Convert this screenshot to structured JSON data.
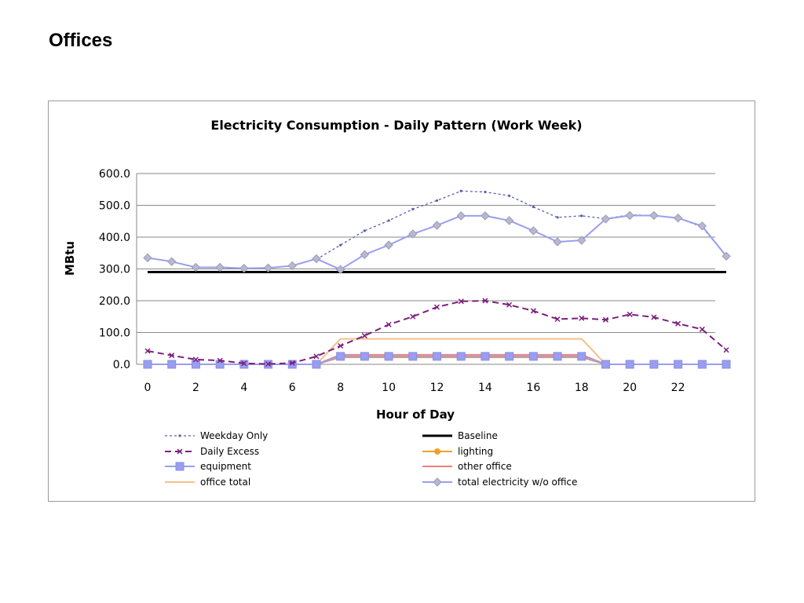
{
  "page": {
    "title": "Offices"
  },
  "chart_data": {
    "type": "line",
    "title": "Electricity Consumption - Daily Pattern (Work Week)",
    "xlabel": "Hour of Day",
    "ylabel": "MBtu",
    "x": [
      0,
      1,
      2,
      3,
      4,
      5,
      6,
      7,
      8,
      9,
      10,
      11,
      12,
      13,
      14,
      15,
      16,
      17,
      18,
      19,
      20,
      21,
      22,
      23,
      24
    ],
    "xlim": [
      0,
      24
    ],
    "x_ticks": [
      0,
      2,
      4,
      6,
      8,
      10,
      12,
      14,
      16,
      18,
      20,
      22
    ],
    "ylim": [
      0,
      600
    ],
    "y_ticks": [
      0,
      100,
      200,
      300,
      400,
      500,
      600
    ],
    "y_tick_labels": [
      "0.0",
      "100.0",
      "200.0",
      "300.0",
      "400.0",
      "500.0",
      "600.0"
    ],
    "grid": "horizontal",
    "legend_position": "bottom",
    "series": [
      {
        "name": "Weekday Only",
        "color": "#5a5fb0",
        "style": "dotted",
        "marker": "dash-dot",
        "values": [
          null,
          null,
          null,
          null,
          null,
          null,
          null,
          330,
          375,
          420,
          452,
          488,
          515,
          545,
          542,
          530,
          495,
          462,
          467,
          458,
          470,
          468,
          460,
          432,
          340
        ]
      },
      {
        "name": "Baseline",
        "color": "#000000",
        "style": "solid-thick",
        "marker": "none",
        "values": [
          290,
          290,
          290,
          290,
          290,
          290,
          290,
          290,
          290,
          290,
          290,
          290,
          290,
          290,
          290,
          290,
          290,
          290,
          290,
          290,
          290,
          290,
          290,
          290,
          290
        ]
      },
      {
        "name": "Daily Excess",
        "color": "#7b1f7d",
        "style": "dashed",
        "marker": "x",
        "values": [
          42,
          28,
          15,
          12,
          3,
          1,
          4,
          25,
          58,
          90,
          125,
          150,
          180,
          198,
          200,
          187,
          168,
          142,
          145,
          140,
          157,
          148,
          128,
          110,
          45
        ]
      },
      {
        "name": "lighting",
        "color": "#f0a030",
        "style": "solid",
        "marker": "circle",
        "values": [
          0,
          0,
          0,
          0,
          0,
          0,
          0,
          0,
          22,
          22,
          22,
          22,
          22,
          22,
          22,
          22,
          22,
          22,
          22,
          0,
          0,
          0,
          0,
          0,
          0
        ]
      },
      {
        "name": "equipment",
        "color": "#9a9ef0",
        "style": "solid",
        "marker": "square",
        "values": [
          0,
          0,
          0,
          0,
          0,
          0,
          0,
          0,
          25,
          25,
          25,
          25,
          25,
          25,
          25,
          25,
          25,
          25,
          25,
          0,
          0,
          0,
          0,
          0,
          0
        ]
      },
      {
        "name": "other office",
        "color": "#f08080",
        "style": "solid",
        "marker": "dash",
        "values": [
          0,
          0,
          0,
          0,
          0,
          0,
          0,
          0,
          30,
          30,
          30,
          30,
          30,
          30,
          30,
          30,
          30,
          30,
          30,
          0,
          0,
          0,
          0,
          0,
          0
        ]
      },
      {
        "name": "office total",
        "color": "#f5c08a",
        "style": "solid",
        "marker": "dash",
        "values": [
          0,
          0,
          0,
          0,
          0,
          0,
          0,
          0,
          80,
          80,
          80,
          80,
          80,
          80,
          80,
          80,
          80,
          80,
          80,
          0,
          0,
          0,
          0,
          0,
          0
        ]
      },
      {
        "name": "total electricity w/o office",
        "color": "#9a9ef0",
        "style": "solid",
        "marker": "diamond",
        "values": [
          335,
          323,
          305,
          305,
          302,
          303,
          310,
          332,
          298,
          345,
          375,
          410,
          437,
          467,
          467,
          452,
          420,
          385,
          390,
          457,
          468,
          468,
          460,
          435,
          340
        ]
      }
    ]
  }
}
